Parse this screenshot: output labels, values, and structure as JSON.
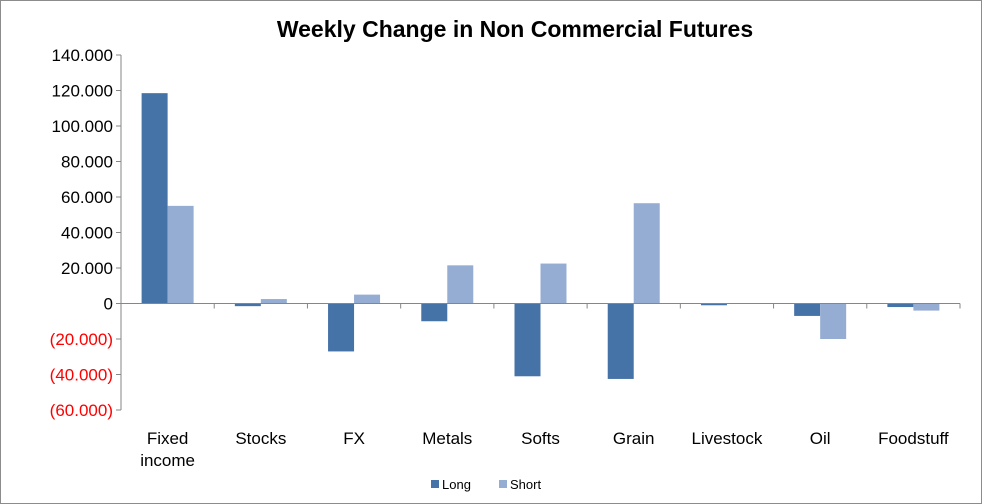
{
  "chart_data": {
    "type": "bar",
    "title": "Weekly Change in Non Commercial Futures",
    "categories": [
      "Fixed income",
      "Stocks",
      "FX",
      "Metals",
      "Softs",
      "Grain",
      "Livestock",
      "Oil",
      "Foodstuff"
    ],
    "category_lines": [
      [
        "Fixed",
        "income"
      ],
      [
        "Stocks"
      ],
      [
        "FX"
      ],
      [
        "Metals"
      ],
      [
        "Softs"
      ],
      [
        "Grain"
      ],
      [
        "Livestock"
      ],
      [
        "Oil"
      ],
      [
        "Foodstuff"
      ]
    ],
    "series": [
      {
        "name": "Long",
        "color": "#4572a7",
        "values": [
          118500,
          -1500,
          -27000,
          -10000,
          -41000,
          -42500,
          -1000,
          -7000,
          -2000
        ]
      },
      {
        "name": "Short",
        "color": "#95acd3",
        "values": [
          55000,
          2500,
          5000,
          21500,
          22500,
          56500,
          0,
          -20000,
          -4000
        ]
      }
    ],
    "ylim": [
      -60000,
      140000
    ],
    "yticks": [
      140000,
      120000,
      100000,
      80000,
      60000,
      40000,
      20000,
      0,
      -20000,
      -40000,
      -60000
    ],
    "ytick_labels": [
      "140.000",
      "120.000",
      "100.000",
      "80.000",
      "60.000",
      "40.000",
      "20.000",
      "0",
      "(20.000)",
      "(40.000)",
      "(60.000)"
    ],
    "negative_label_color": "#ff0000",
    "positive_label_color": "#000000",
    "grid": false,
    "legend": "bottom-center",
    "xlabel": "",
    "ylabel": ""
  }
}
